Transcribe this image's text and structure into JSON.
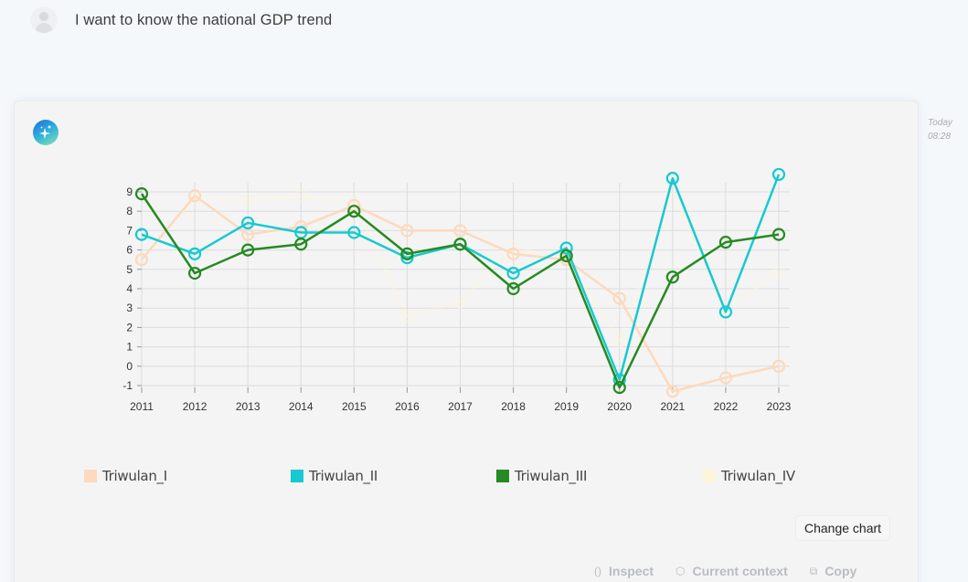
{
  "user": {
    "message": "I want to know the national GDP trend"
  },
  "timestamp": {
    "day": "Today",
    "time": "08:28"
  },
  "buttons": {
    "change_chart": "Change chart"
  },
  "actions": [
    {
      "icon": "braces-icon",
      "glyph": "()",
      "label": "Inspect"
    },
    {
      "icon": "cube-icon",
      "glyph": "⬡",
      "label": "Current context"
    },
    {
      "icon": "copy-icon",
      "glyph": "⧉",
      "label": "Copy"
    }
  ],
  "chart_data": {
    "type": "line",
    "title": "",
    "xlabel": "",
    "ylabel": "",
    "x": [
      "2011",
      "2012",
      "2013",
      "2014",
      "2015",
      "2016",
      "2017",
      "2018",
      "2019",
      "2020",
      "2021",
      "2022",
      "2023"
    ],
    "yticks": [
      "-1",
      "0",
      "1",
      "2",
      "3",
      "4",
      "5",
      "6",
      "7",
      "8",
      "9"
    ],
    "ylim": [
      -1.4,
      10.2
    ],
    "grid": true,
    "legend_position": "bottom",
    "series": [
      {
        "name": "Triwulan_I",
        "color": "#fdd9bd",
        "opacity": 1,
        "values": [
          5.5,
          8.8,
          6.8,
          7.2,
          8.3,
          7.0,
          7.0,
          5.8,
          5.5,
          3.5,
          -1.3,
          -0.6,
          0.0
        ]
      },
      {
        "name": "Triwulan_II",
        "color": "#17c9d1",
        "opacity": 1,
        "values": [
          6.8,
          5.8,
          7.4,
          6.9,
          6.9,
          5.6,
          6.3,
          4.8,
          6.1,
          -0.7,
          9.7,
          2.8,
          9.9
        ]
      },
      {
        "name": "Triwulan_III",
        "color": "#268a22",
        "opacity": 1,
        "values": [
          8.9,
          4.8,
          6.0,
          6.3,
          8.0,
          5.8,
          6.3,
          4.0,
          5.7,
          -1.1,
          4.6,
          6.4,
          6.8
        ]
      },
      {
        "name": "Triwulan_IV",
        "color": "#fdf4d9",
        "opacity": 0.45,
        "values": [
          5.5,
          8.7,
          8.6,
          8.8,
          8.4,
          2.6,
          3.3,
          6.2,
          5.5,
          1.3,
          9.0,
          3.0,
          4.8
        ]
      }
    ]
  }
}
